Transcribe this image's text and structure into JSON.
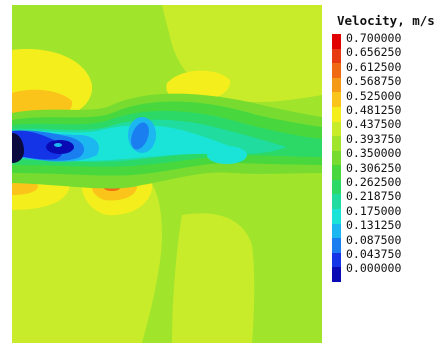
{
  "legend": {
    "title": "Velocity, m/s",
    "levels": [
      {
        "label": "0.700000",
        "color": "#e00000"
      },
      {
        "label": "0.656250",
        "color": "#e83a10"
      },
      {
        "label": "0.612500",
        "color": "#f06a14"
      },
      {
        "label": "0.568750",
        "color": "#f59a18"
      },
      {
        "label": "0.525000",
        "color": "#fbc41a"
      },
      {
        "label": "0.481250",
        "color": "#f4ee1c"
      },
      {
        "label": "0.437500",
        "color": "#c8ec2a"
      },
      {
        "label": "0.393750",
        "color": "#a0e42c"
      },
      {
        "label": "0.350000",
        "color": "#78dc30"
      },
      {
        "label": "0.306250",
        "color": "#48d83e"
      },
      {
        "label": "0.262500",
        "color": "#2cd866"
      },
      {
        "label": "0.218750",
        "color": "#20dc9e"
      },
      {
        "label": "0.175000",
        "color": "#1ae4d8"
      },
      {
        "label": "0.131250",
        "color": "#1cb6f0"
      },
      {
        "label": "0.087500",
        "color": "#1a7ef0"
      },
      {
        "label": "0.043750",
        "color": "#1434e8"
      },
      {
        "label": "0.000000",
        "color": "#0a0ab4"
      }
    ]
  }
}
